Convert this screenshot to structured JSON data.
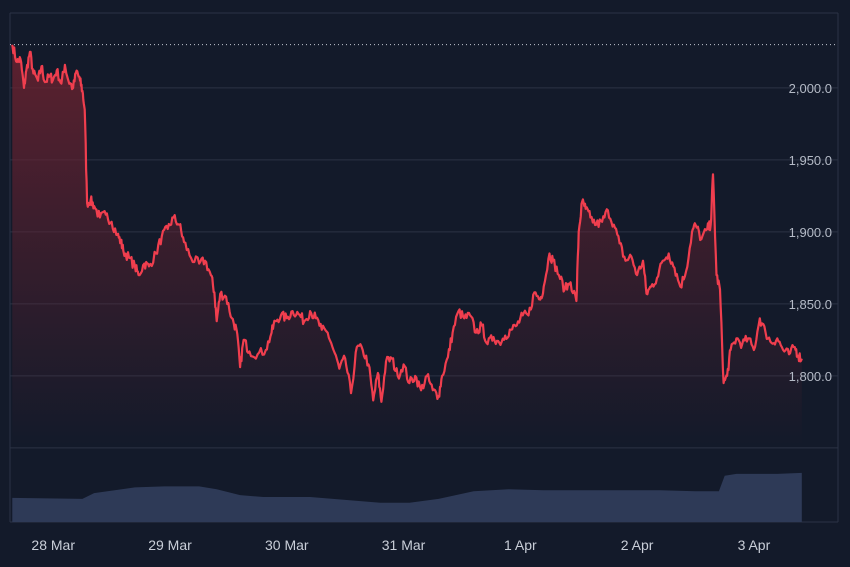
{
  "colors": {
    "background": "#131a2a",
    "grid": "#2b3345",
    "price_line": "#f03e4e",
    "area_top": "#6a2230",
    "volume": "#2e3a57",
    "reference_line": "#c2c7d2"
  },
  "chart_data": {
    "type": "line",
    "title": "",
    "xlabel": "",
    "ylabel": "",
    "ylim": [
      1752,
      2052
    ],
    "yticks": [
      1800,
      1850,
      1900,
      1950,
      2000
    ],
    "ytick_labels": [
      "1,800.0",
      "1,850.0",
      "1,900.0",
      "1,950.0",
      "2,000.0"
    ],
    "xlim": [
      -0.37,
      6.72
    ],
    "xticks": [
      0,
      1,
      2,
      3,
      4,
      5,
      6
    ],
    "xtick_labels": [
      "28 Mar",
      "29 Mar",
      "30 Mar",
      "31 Mar",
      "1 Apr",
      "2 Apr",
      "3 Apr"
    ],
    "grid": true,
    "reference_value": 2030,
    "area_fill": true,
    "series": [
      {
        "values": [
          [
            -0.35,
            2030
          ],
          [
            -0.31,
            2018
          ],
          [
            -0.28,
            2020
          ],
          [
            -0.25,
            2000
          ],
          [
            -0.23,
            2012
          ],
          [
            -0.2,
            2025
          ],
          [
            -0.17,
            2010
          ],
          [
            -0.13,
            2005
          ],
          [
            -0.1,
            2015
          ],
          [
            -0.07,
            2004
          ],
          [
            -0.03,
            2008
          ],
          [
            0.0,
            2006
          ],
          [
            0.03,
            2012
          ],
          [
            0.07,
            2003
          ],
          [
            0.1,
            2016
          ],
          [
            0.13,
            2005
          ],
          [
            0.17,
            2000
          ],
          [
            0.2,
            2012
          ],
          [
            0.23,
            2005
          ],
          [
            0.25,
            1998
          ],
          [
            0.27,
            1985
          ],
          [
            0.29,
            1920
          ],
          [
            0.32,
            1922
          ],
          [
            0.35,
            1918
          ],
          [
            0.4,
            1910
          ],
          [
            0.45,
            1912
          ],
          [
            0.5,
            1907
          ],
          [
            0.55,
            1898
          ],
          [
            0.58,
            1893
          ],
          [
            0.6,
            1887
          ],
          [
            0.65,
            1882
          ],
          [
            0.7,
            1876
          ],
          [
            0.73,
            1870
          ],
          [
            0.78,
            1878
          ],
          [
            0.82,
            1876
          ],
          [
            0.88,
            1885
          ],
          [
            0.93,
            1897
          ],
          [
            0.98,
            1902
          ],
          [
            1.03,
            1910
          ],
          [
            1.08,
            1905
          ],
          [
            1.12,
            1893
          ],
          [
            1.18,
            1882
          ],
          [
            1.25,
            1878
          ],
          [
            1.3,
            1880
          ],
          [
            1.35,
            1870
          ],
          [
            1.38,
            1858
          ],
          [
            1.4,
            1838
          ],
          [
            1.43,
            1857
          ],
          [
            1.48,
            1855
          ],
          [
            1.53,
            1840
          ],
          [
            1.57,
            1832
          ],
          [
            1.6,
            1806
          ],
          [
            1.63,
            1825
          ],
          [
            1.68,
            1817
          ],
          [
            1.75,
            1815
          ],
          [
            1.82,
            1818
          ],
          [
            1.87,
            1830
          ],
          [
            1.9,
            1838
          ],
          [
            1.95,
            1842
          ],
          [
            2.0,
            1840
          ],
          [
            2.05,
            1845
          ],
          [
            2.1,
            1843
          ],
          [
            2.15,
            1838
          ],
          [
            2.2,
            1845
          ],
          [
            2.25,
            1840
          ],
          [
            2.3,
            1832
          ],
          [
            2.35,
            1830
          ],
          [
            2.4,
            1818
          ],
          [
            2.45,
            1805
          ],
          [
            2.5,
            1812
          ],
          [
            2.55,
            1788
          ],
          [
            2.6,
            1820
          ],
          [
            2.65,
            1818
          ],
          [
            2.7,
            1808
          ],
          [
            2.74,
            1783
          ],
          [
            2.78,
            1802
          ],
          [
            2.81,
            1782
          ],
          [
            2.85,
            1810
          ],
          [
            2.9,
            1812
          ],
          [
            2.95,
            1800
          ],
          [
            3.0,
            1808
          ],
          [
            3.05,
            1795
          ],
          [
            3.1,
            1800
          ],
          [
            3.15,
            1790
          ],
          [
            3.2,
            1800
          ],
          [
            3.25,
            1790
          ],
          [
            3.3,
            1786
          ],
          [
            3.33,
            1800
          ],
          [
            3.38,
            1813
          ],
          [
            3.42,
            1830
          ],
          [
            3.47,
            1845
          ],
          [
            3.52,
            1840
          ],
          [
            3.57,
            1842
          ],
          [
            3.62,
            1830
          ],
          [
            3.67,
            1835
          ],
          [
            3.72,
            1822
          ],
          [
            3.77,
            1827
          ],
          [
            3.82,
            1823
          ],
          [
            3.87,
            1828
          ],
          [
            3.92,
            1832
          ],
          [
            3.97,
            1835
          ],
          [
            4.02,
            1842
          ],
          [
            4.07,
            1842
          ],
          [
            4.12,
            1858
          ],
          [
            4.17,
            1853
          ],
          [
            4.2,
            1862
          ],
          [
            4.25,
            1885
          ],
          [
            4.28,
            1880
          ],
          [
            4.33,
            1870
          ],
          [
            4.38,
            1860
          ],
          [
            4.43,
            1865
          ],
          [
            4.48,
            1852
          ],
          [
            4.5,
            1900
          ],
          [
            4.53,
            1921
          ],
          [
            4.56,
            1916
          ],
          [
            4.6,
            1910
          ],
          [
            4.65,
            1905
          ],
          [
            4.7,
            1907
          ],
          [
            4.75,
            1915
          ],
          [
            4.8,
            1905
          ],
          [
            4.85,
            1892
          ],
          [
            4.9,
            1880
          ],
          [
            4.95,
            1883
          ],
          [
            5.0,
            1870
          ],
          [
            5.05,
            1880
          ],
          [
            5.08,
            1857
          ],
          [
            5.12,
            1862
          ],
          [
            5.17,
            1868
          ],
          [
            5.22,
            1880
          ],
          [
            5.27,
            1885
          ],
          [
            5.32,
            1875
          ],
          [
            5.37,
            1862
          ],
          [
            5.42,
            1873
          ],
          [
            5.47,
            1900
          ],
          [
            5.5,
            1905
          ],
          [
            5.55,
            1895
          ],
          [
            5.6,
            1902
          ],
          [
            5.63,
            1905
          ],
          [
            5.65,
            1940
          ],
          [
            5.68,
            1870
          ],
          [
            5.71,
            1860
          ],
          [
            5.74,
            1795
          ],
          [
            5.77,
            1800
          ],
          [
            5.8,
            1818
          ],
          [
            5.85,
            1826
          ],
          [
            5.9,
            1822
          ],
          [
            5.95,
            1826
          ],
          [
            6.0,
            1818
          ],
          [
            6.05,
            1840
          ],
          [
            6.1,
            1830
          ],
          [
            6.15,
            1823
          ],
          [
            6.2,
            1826
          ],
          [
            6.25,
            1818
          ],
          [
            6.3,
            1815
          ],
          [
            6.35,
            1820
          ],
          [
            6.38,
            1814
          ],
          [
            6.41,
            1812
          ]
        ]
      }
    ],
    "volume": {
      "values": [
        [
          -0.35,
          25
        ],
        [
          0.25,
          24
        ],
        [
          0.35,
          30
        ],
        [
          0.7,
          36
        ],
        [
          0.95,
          37
        ],
        [
          1.25,
          37
        ],
        [
          1.4,
          34
        ],
        [
          1.6,
          28
        ],
        [
          1.8,
          26
        ],
        [
          2.2,
          26
        ],
        [
          2.5,
          23
        ],
        [
          2.8,
          20
        ],
        [
          3.05,
          20
        ],
        [
          3.3,
          24
        ],
        [
          3.6,
          32
        ],
        [
          3.9,
          34
        ],
        [
          4.2,
          33
        ],
        [
          4.5,
          33
        ],
        [
          4.9,
          33
        ],
        [
          5.2,
          33
        ],
        [
          5.5,
          32
        ],
        [
          5.7,
          32
        ],
        [
          5.75,
          48
        ],
        [
          5.85,
          50
        ],
        [
          6.2,
          50
        ],
        [
          6.41,
          51
        ]
      ]
    }
  }
}
